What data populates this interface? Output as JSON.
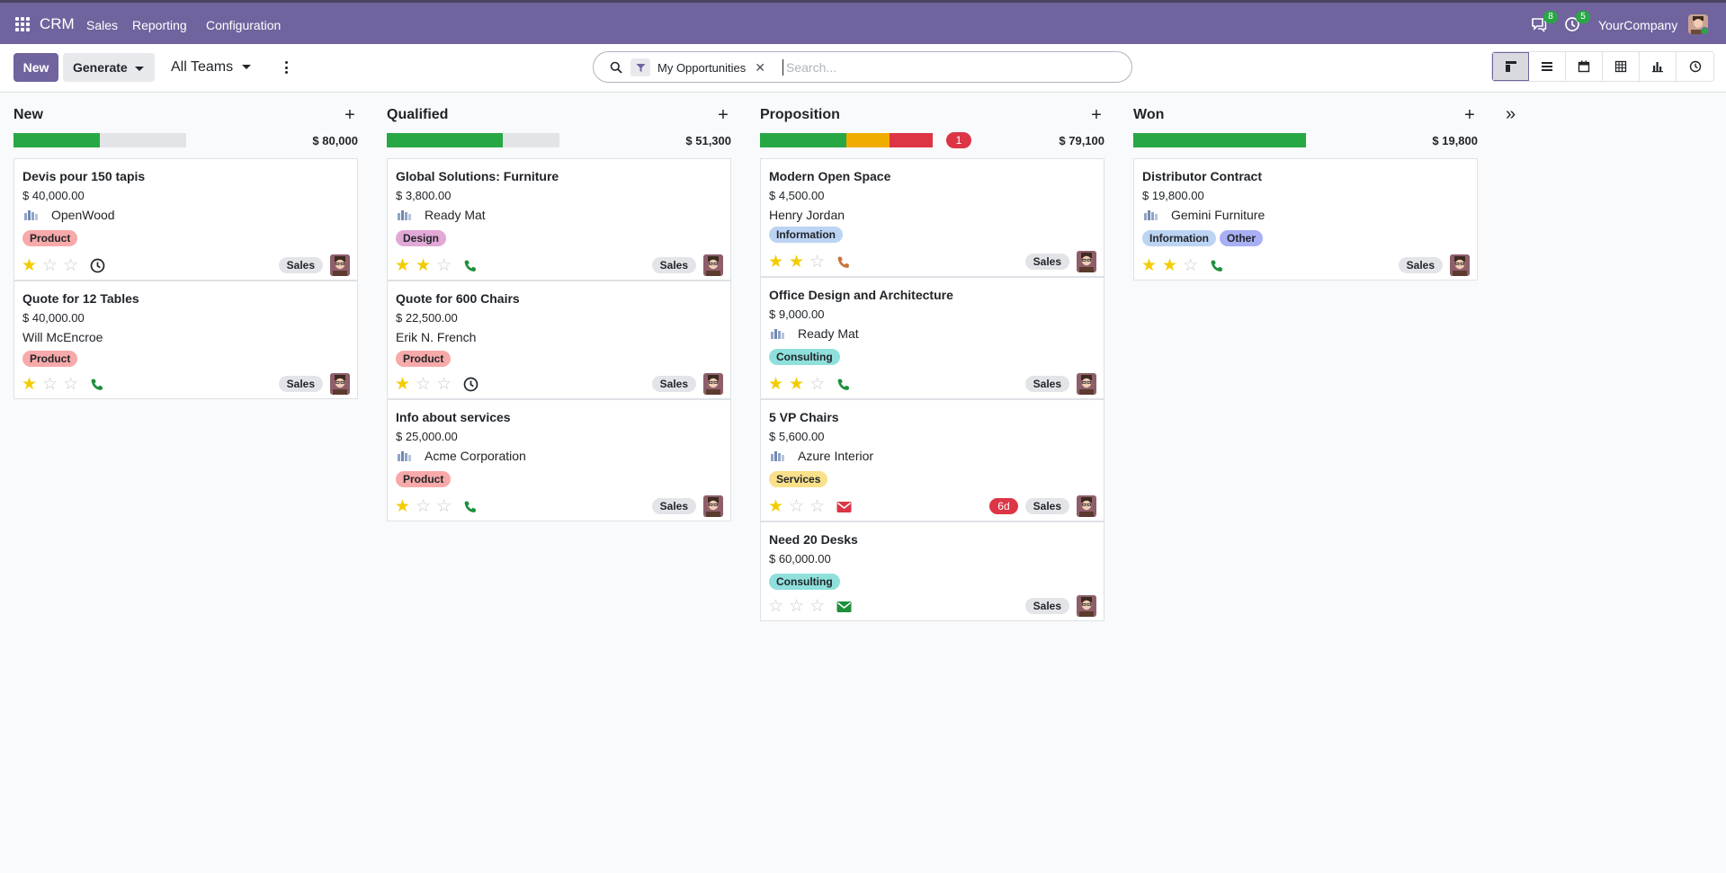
{
  "navbar": {
    "brand": "CRM",
    "menu": [
      "Sales",
      "Reporting",
      "Configuration"
    ],
    "messages_count": "8",
    "activities_count": "5",
    "company": "YourCompany",
    "bg_color": "#71639e"
  },
  "control": {
    "new_label": "New",
    "generate_label": "Generate",
    "team_label": "All Teams",
    "search": {
      "facet_label": "My Opportunities",
      "placeholder": "Search..."
    },
    "views": [
      "kanban-view-icon",
      "list-view-icon",
      "calendar-view-icon",
      "pivot-view-icon",
      "graph-view-icon",
      "activity-view-icon"
    ]
  },
  "columns": [
    {
      "title": "New",
      "total": "$ 80,000",
      "progress": {
        "green": 0.5,
        "orange": 0,
        "red": 0
      },
      "cards": [
        {
          "title": "Devis pour 150 tapis",
          "amount": "$ 40,000.00",
          "partner": "OpenWood",
          "tags": [
            {
              "label": "Product",
              "color": "#f8a9a9"
            }
          ],
          "stars": 1,
          "activity": "clock",
          "overdue": "",
          "salesteam": "Sales"
        },
        {
          "title": "Quote for 12 Tables",
          "amount": "$ 40,000.00",
          "partner": "Will McEncroe",
          "tags": [
            {
              "label": "Product",
              "color": "#f8a9a9"
            }
          ],
          "stars": 1,
          "activity": "phone-green",
          "overdue": "",
          "salesteam": "Sales"
        }
      ]
    },
    {
      "title": "Qualified",
      "total": "$ 51,300",
      "progress": {
        "green": 0.67,
        "orange": 0,
        "red": 0
      },
      "cards": [
        {
          "title": "Global Solutions: Furniture",
          "amount": "$ 3,800.00",
          "partner": "Ready Mat",
          "tags": [
            {
              "label": "Design",
              "color": "#e2a8d6"
            }
          ],
          "stars": 2,
          "activity": "phone-green",
          "overdue": "",
          "salesteam": "Sales"
        },
        {
          "title": "Quote for 600 Chairs",
          "amount": "$ 22,500.00",
          "partner": "Erik N. French",
          "tags": [
            {
              "label": "Product",
              "color": "#f8a9a9"
            }
          ],
          "stars": 1,
          "activity": "clock",
          "overdue": "",
          "salesteam": "Sales"
        },
        {
          "title": "Info about services",
          "amount": "$ 25,000.00",
          "partner": "Acme Corporation",
          "tags": [
            {
              "label": "Product",
              "color": "#f8a9a9"
            }
          ],
          "stars": 1,
          "activity": "phone-green",
          "overdue": "",
          "salesteam": "Sales"
        }
      ]
    },
    {
      "title": "Proposition",
      "total": "$ 79,100",
      "count_badge": "1",
      "progress": {
        "green": 0.5,
        "orange": 0.25,
        "red": 0.25
      },
      "cards": [
        {
          "title": "Modern Open Space",
          "amount": "$ 4,500.00",
          "partner": "Henry Jordan",
          "tags": [
            {
              "label": "Information",
              "color": "#bcd4f3"
            }
          ],
          "stars": 2,
          "activity": "phone-orange",
          "overdue": "",
          "salesteam": "Sales"
        },
        {
          "title": "Office Design and Architecture",
          "amount": "$ 9,000.00",
          "partner": "Ready Mat",
          "tags": [
            {
              "label": "Consulting",
              "color": "#8fe0dc"
            }
          ],
          "stars": 2,
          "activity": "phone-green",
          "overdue": "",
          "salesteam": "Sales"
        },
        {
          "title": "5 VP Chairs",
          "amount": "$ 5,600.00",
          "partner": "Azure Interior",
          "tags": [
            {
              "label": "Services",
              "color": "#f9e08a"
            }
          ],
          "stars": 1,
          "activity": "mail-red",
          "overdue": "6d",
          "salesteam": "Sales"
        },
        {
          "title": "Need 20 Desks",
          "amount": "$ 60,000.00",
          "partner": "",
          "tags": [
            {
              "label": "Consulting",
              "color": "#8fe0dc"
            }
          ],
          "stars": 0,
          "activity": "mail-green",
          "overdue": "",
          "salesteam": "Sales"
        }
      ]
    },
    {
      "title": "Won",
      "total": "$ 19,800",
      "progress": {
        "green": 1,
        "orange": 0,
        "red": 0
      },
      "cards": [
        {
          "title": "Distributor Contract",
          "amount": "$ 19,800.00",
          "partner": "Gemini Furniture",
          "tags": [
            {
              "label": "Information",
              "color": "#bcd4f3"
            },
            {
              "label": "Other",
              "color": "#a9aff3"
            }
          ],
          "stars": 2,
          "activity": "phone-green",
          "overdue": "",
          "salesteam": "Sales"
        }
      ]
    }
  ],
  "fold_icon": "double-chevron-right-icon"
}
